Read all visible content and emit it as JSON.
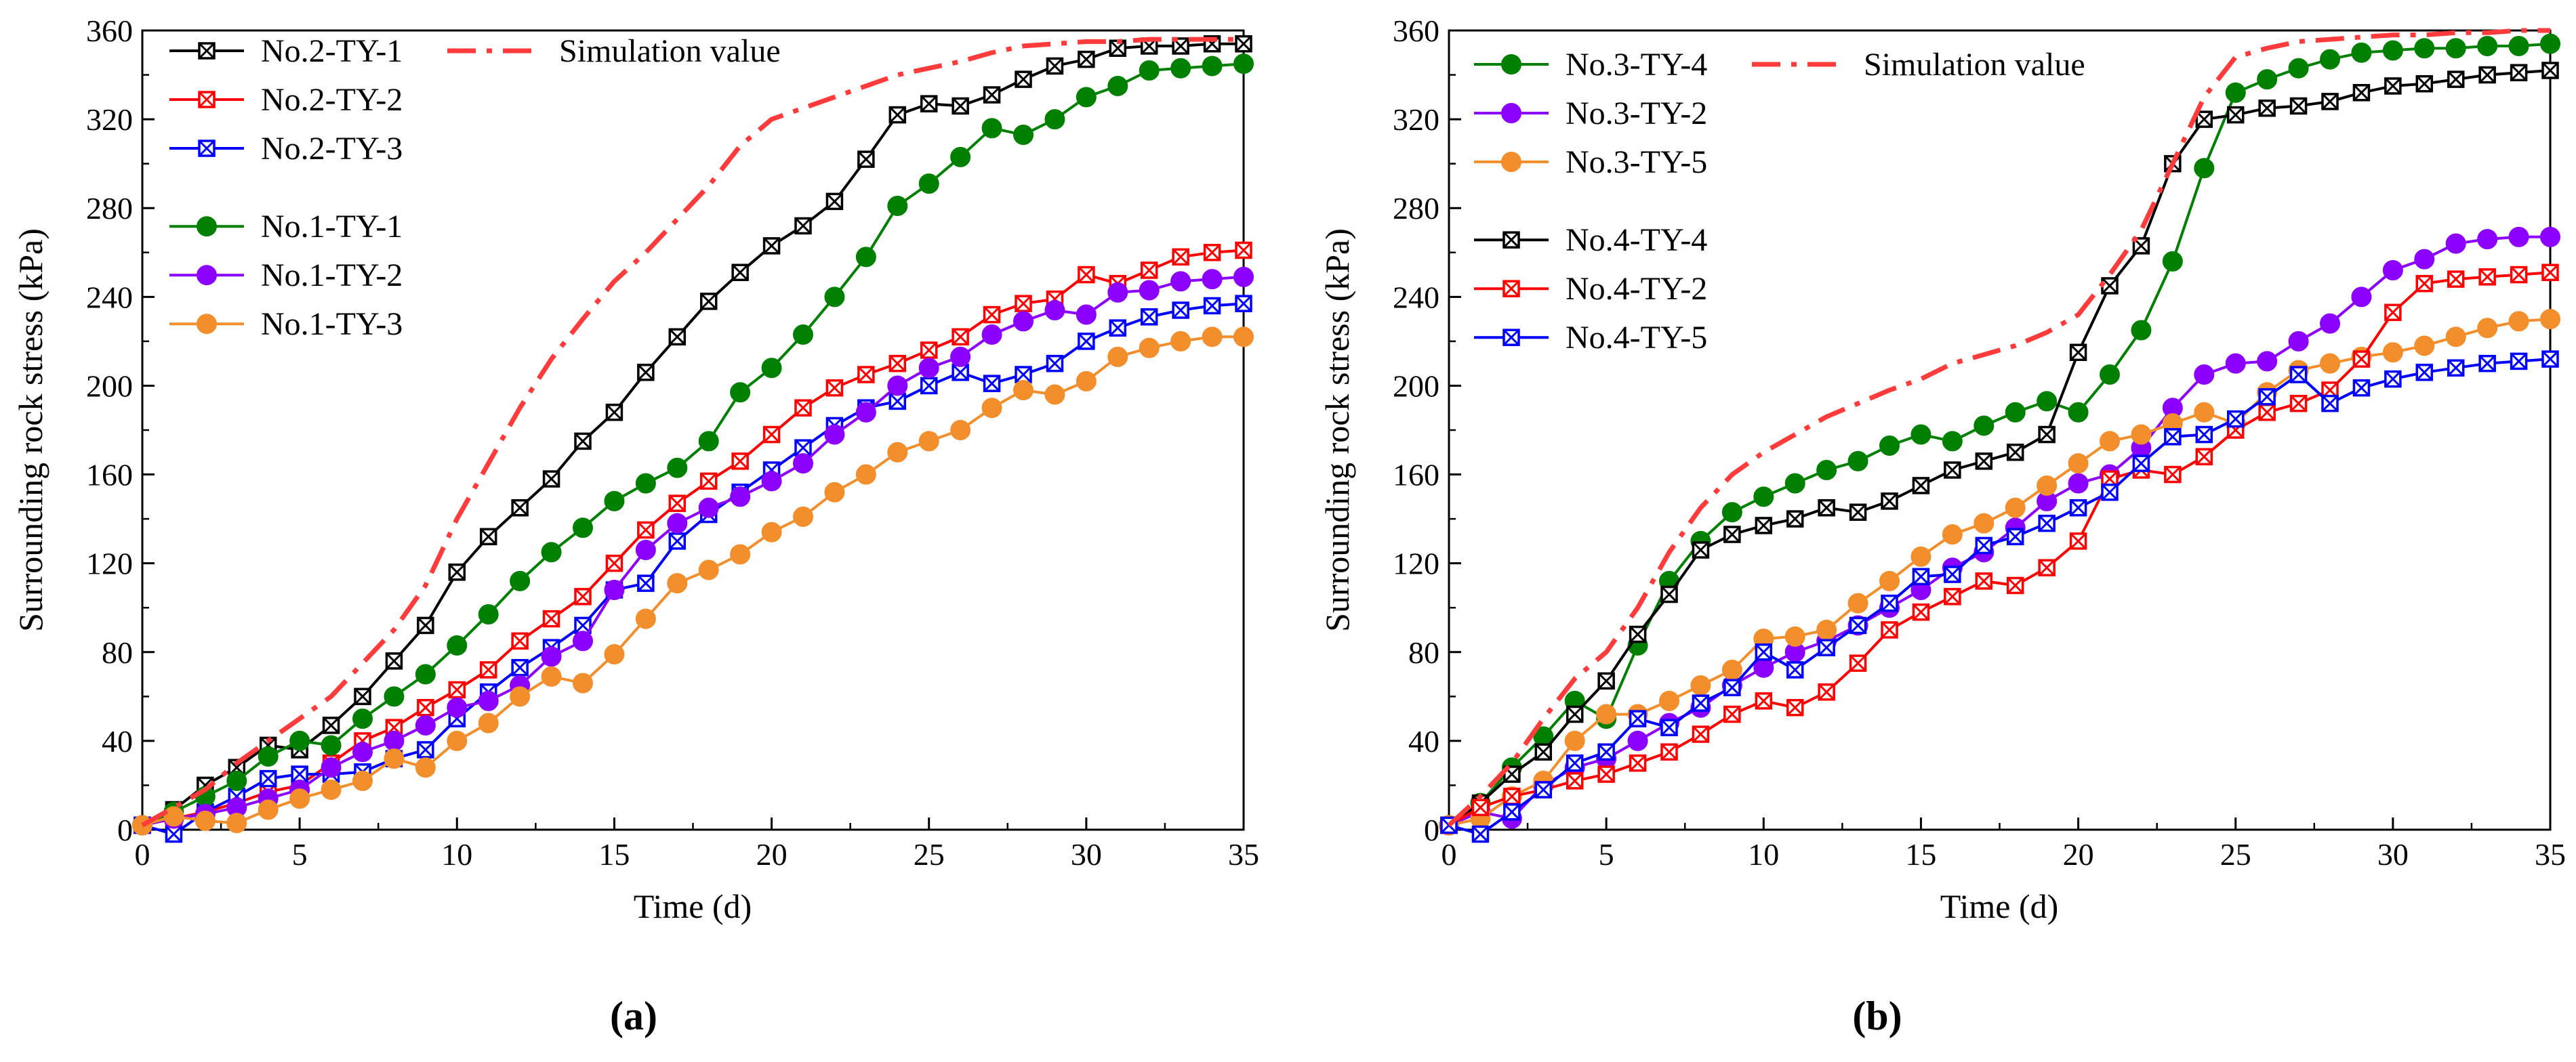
{
  "chart_data": [
    {
      "type": "line",
      "panel_label": "(a)",
      "xlabel": "Time (d)",
      "ylabel": "Surrounding rock stress (kPa)",
      "xlim": [
        0,
        35
      ],
      "ylim": [
        0,
        360
      ],
      "xticks": [
        0,
        5,
        10,
        15,
        20,
        25,
        30,
        35
      ],
      "yticks": [
        0,
        40,
        80,
        120,
        160,
        200,
        240,
        280,
        320,
        360
      ],
      "x": [
        0,
        1,
        2,
        3,
        4,
        5,
        6,
        7,
        8,
        9,
        10,
        11,
        12,
        13,
        14,
        15,
        16,
        17,
        18,
        19,
        20,
        21,
        22,
        23,
        24,
        25,
        26,
        27,
        28,
        29,
        30,
        31,
        32,
        33,
        34,
        35
      ],
      "series": [
        {
          "name": "No.2-TY-1",
          "color": "#000000",
          "marker": "boxx",
          "values": [
            2,
            9,
            20,
            28,
            38,
            36,
            47,
            60,
            76,
            92,
            116,
            132,
            145,
            158,
            175,
            188,
            206,
            222,
            238,
            251,
            263,
            272,
            283,
            302,
            322,
            327,
            326,
            331,
            338,
            344,
            347,
            352,
            353,
            353,
            354,
            354
          ]
        },
        {
          "name": "No.2-TY-2",
          "color": "#ff0000",
          "marker": "boxx",
          "values": [
            2,
            5,
            8,
            12,
            17,
            20,
            30,
            40,
            46,
            55,
            63,
            72,
            85,
            95,
            105,
            120,
            135,
            147,
            157,
            166,
            178,
            190,
            199,
            205,
            210,
            216,
            222,
            232,
            237,
            239,
            250,
            246,
            252,
            258,
            260,
            261
          ]
        },
        {
          "name": "No.2-TY-3",
          "color": "#0000ff",
          "marker": "boxx",
          "values": [
            2,
            -2,
            8,
            15,
            23,
            25,
            25,
            26,
            32,
            36,
            50,
            62,
            73,
            82,
            92,
            108,
            111,
            130,
            142,
            152,
            162,
            172,
            182,
            190,
            193,
            200,
            206,
            201,
            205,
            210,
            220,
            226,
            231,
            234,
            236,
            237
          ]
        },
        {
          "name": "No.1-TY-1",
          "color": "#008000",
          "marker": "circle",
          "values": [
            2,
            8,
            15,
            22,
            33,
            40,
            38,
            50,
            60,
            70,
            83,
            97,
            112,
            125,
            136,
            148,
            156,
            163,
            175,
            197,
            208,
            223,
            240,
            258,
            281,
            291,
            303,
            316,
            313,
            320,
            330,
            335,
            342,
            343,
            344,
            345
          ]
        },
        {
          "name": "No.1-TY-2",
          "color": "#8b00ff",
          "marker": "circle",
          "values": [
            2,
            5,
            7,
            10,
            14,
            18,
            28,
            35,
            40,
            47,
            55,
            58,
            65,
            78,
            85,
            108,
            126,
            138,
            145,
            150,
            157,
            165,
            178,
            188,
            200,
            208,
            213,
            223,
            229,
            234,
            232,
            242,
            243,
            247,
            248,
            249
          ]
        },
        {
          "name": "No.1-TY-3",
          "color": "#f28e2b",
          "marker": "circle",
          "values": [
            2,
            6,
            4,
            3,
            9,
            14,
            18,
            22,
            32,
            28,
            40,
            48,
            60,
            69,
            66,
            79,
            95,
            111,
            117,
            124,
            134,
            141,
            152,
            160,
            170,
            175,
            180,
            190,
            198,
            196,
            202,
            213,
            217,
            220,
            222,
            222
          ]
        },
        {
          "name": "Simulation value",
          "color": "#ff3b3b",
          "marker": "none",
          "dash": true,
          "values": [
            2,
            10,
            18,
            30,
            40,
            50,
            60,
            75,
            90,
            110,
            140,
            165,
            190,
            212,
            230,
            247,
            260,
            275,
            290,
            308,
            320,
            325,
            330,
            335,
            340,
            343,
            346,
            350,
            353,
            354,
            355,
            355,
            356,
            356,
            356,
            356
          ]
        }
      ],
      "legend_groups": [
        [
          "No.2-TY-1",
          "No.2-TY-2",
          "No.2-TY-3"
        ],
        [
          "No.1-TY-1",
          "No.1-TY-2",
          "No.1-TY-3"
        ]
      ],
      "legend_extra": "Simulation value"
    },
    {
      "type": "line",
      "panel_label": "(b)",
      "xlabel": "Time (d)",
      "ylabel": "Surrounding rock stress (kPa)",
      "xlim": [
        0,
        35
      ],
      "ylim": [
        0,
        360
      ],
      "xticks": [
        0,
        5,
        10,
        15,
        20,
        25,
        30,
        35
      ],
      "yticks": [
        0,
        40,
        80,
        120,
        160,
        200,
        240,
        280,
        320,
        360
      ],
      "x": [
        0,
        1,
        2,
        3,
        4,
        5,
        6,
        7,
        8,
        9,
        10,
        11,
        12,
        13,
        14,
        15,
        16,
        17,
        18,
        19,
        20,
        21,
        22,
        23,
        24,
        25,
        26,
        27,
        28,
        29,
        30,
        31,
        32,
        33,
        34,
        35
      ],
      "series": [
        {
          "name": "No.3-TY-4",
          "color": "#008000",
          "marker": "circle",
          "values": [
            2,
            12,
            28,
            42,
            58,
            50,
            83,
            112,
            130,
            143,
            150,
            156,
            162,
            166,
            173,
            178,
            175,
            182,
            188,
            193,
            188,
            205,
            225,
            256,
            298,
            332,
            338,
            343,
            347,
            350,
            351,
            352,
            352,
            353,
            353,
            354
          ]
        },
        {
          "name": "No.3-TY-2",
          "color": "#8b00ff",
          "marker": "circle",
          "values": [
            2,
            8,
            5,
            20,
            28,
            32,
            40,
            48,
            55,
            65,
            73,
            80,
            85,
            92,
            100,
            108,
            118,
            125,
            136,
            148,
            156,
            160,
            172,
            190,
            205,
            210,
            211,
            220,
            228,
            240,
            252,
            257,
            264,
            266,
            267,
            267
          ]
        },
        {
          "name": "No.3-TY-5",
          "color": "#f28e2b",
          "marker": "circle",
          "values": [
            2,
            5,
            15,
            22,
            40,
            52,
            52,
            58,
            65,
            72,
            86,
            87,
            90,
            102,
            112,
            123,
            133,
            138,
            145,
            155,
            165,
            175,
            178,
            183,
            188,
            183,
            197,
            207,
            210,
            213,
            215,
            218,
            222,
            226,
            229,
            230
          ]
        },
        {
          "name": "No.4-TY-4",
          "color": "#000000",
          "marker": "boxx",
          "values": [
            2,
            12,
            25,
            35,
            52,
            67,
            88,
            106,
            126,
            133,
            137,
            140,
            145,
            143,
            148,
            155,
            162,
            166,
            170,
            178,
            215,
            245,
            263,
            300,
            320,
            322,
            325,
            326,
            328,
            332,
            335,
            336,
            338,
            340,
            341,
            342
          ]
        },
        {
          "name": "No.4-TY-2",
          "color": "#ff0000",
          "marker": "boxx",
          "values": [
            2,
            10,
            15,
            18,
            22,
            25,
            30,
            35,
            43,
            52,
            58,
            55,
            62,
            75,
            90,
            98,
            105,
            112,
            110,
            118,
            130,
            158,
            162,
            160,
            168,
            180,
            188,
            192,
            198,
            212,
            233,
            246,
            248,
            249,
            250,
            251
          ]
        },
        {
          "name": "No.4-TY-5",
          "color": "#0000ff",
          "marker": "boxx",
          "values": [
            2,
            -2,
            8,
            18,
            30,
            35,
            50,
            46,
            57,
            64,
            80,
            72,
            82,
            92,
            102,
            114,
            115,
            128,
            132,
            138,
            145,
            152,
            165,
            177,
            178,
            185,
            195,
            205,
            192,
            199,
            203,
            206,
            208,
            210,
            211,
            212
          ]
        },
        {
          "name": "Simulation value",
          "color": "#ff3b3b",
          "marker": "none",
          "dash": true,
          "values": [
            2,
            15,
            30,
            50,
            68,
            80,
            100,
            125,
            145,
            160,
            170,
            178,
            186,
            192,
            198,
            203,
            210,
            214,
            218,
            224,
            232,
            250,
            270,
            300,
            330,
            348,
            352,
            355,
            356,
            357,
            358,
            358,
            359,
            359,
            360,
            360
          ]
        }
      ],
      "legend_groups": [
        [
          "No.3-TY-4",
          "No.3-TY-2",
          "No.3-TY-5"
        ],
        [
          "No.4-TY-4",
          "No.4-TY-2",
          "No.4-TY-5"
        ]
      ],
      "legend_extra": "Simulation value"
    }
  ]
}
